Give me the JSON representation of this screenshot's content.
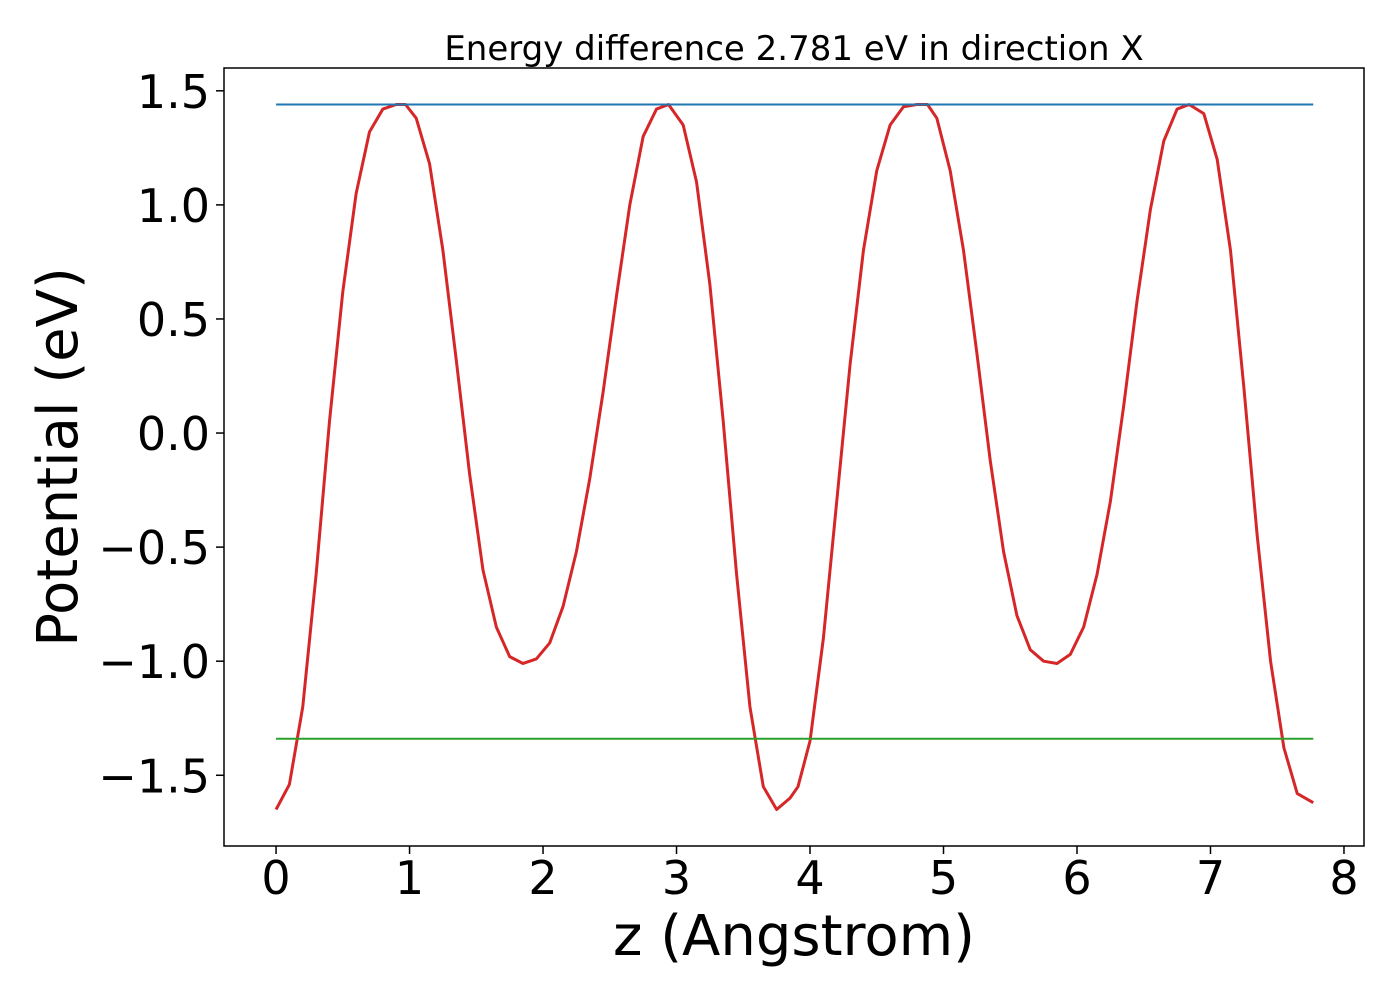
{
  "chart_data": {
    "type": "line",
    "title": "Energy difference 2.781 eV in direction X",
    "xlabel": "z (Angstrom)",
    "ylabel": "Potential (eV)",
    "xlim": [
      -0.39,
      8.15
    ],
    "ylim": [
      -1.81,
      1.6
    ],
    "xticks": [
      0,
      1,
      2,
      3,
      4,
      5,
      6,
      7,
      8
    ],
    "xtick_labels": [
      "0",
      "1",
      "2",
      "3",
      "4",
      "5",
      "6",
      "7",
      "8"
    ],
    "yticks": [
      -1.5,
      -1.0,
      -0.5,
      0.0,
      0.5,
      1.0,
      1.5
    ],
    "ytick_labels": [
      "−1.5",
      "−1.0",
      "−0.5",
      "0.0",
      "0.5",
      "1.0",
      "1.5"
    ],
    "grid": false,
    "series": [
      {
        "color": "#d62728",
        "x": [
          0.0,
          0.1,
          0.2,
          0.3,
          0.4,
          0.5,
          0.6,
          0.7,
          0.8,
          0.9,
          0.97,
          1.05,
          1.15,
          1.25,
          1.35,
          1.45,
          1.55,
          1.65,
          1.75,
          1.85,
          1.95,
          2.05,
          2.15,
          2.25,
          2.35,
          2.45,
          2.55,
          2.65,
          2.75,
          2.85,
          2.94,
          3.05,
          3.15,
          3.25,
          3.35,
          3.45,
          3.55,
          3.65,
          3.75,
          3.85,
          3.91,
          4.0,
          4.1,
          4.2,
          4.3,
          4.4,
          4.5,
          4.6,
          4.7,
          4.8,
          4.88,
          4.95,
          5.05,
          5.15,
          5.25,
          5.35,
          5.45,
          5.55,
          5.65,
          5.75,
          5.85,
          5.95,
          6.05,
          6.15,
          6.25,
          6.35,
          6.45,
          6.55,
          6.65,
          6.75,
          6.84,
          6.95,
          7.05,
          7.15,
          7.25,
          7.35,
          7.45,
          7.55,
          7.65,
          7.77
        ],
        "y": [
          -1.65,
          -1.54,
          -1.2,
          -0.62,
          0.05,
          0.62,
          1.05,
          1.32,
          1.42,
          1.44,
          1.44,
          1.38,
          1.18,
          0.8,
          0.32,
          -0.18,
          -0.6,
          -0.85,
          -0.98,
          -1.01,
          -0.99,
          -0.92,
          -0.76,
          -0.52,
          -0.2,
          0.18,
          0.6,
          1.0,
          1.3,
          1.42,
          1.44,
          1.35,
          1.1,
          0.65,
          0.05,
          -0.62,
          -1.2,
          -1.55,
          -1.65,
          -1.6,
          -1.55,
          -1.35,
          -0.9,
          -0.3,
          0.3,
          0.8,
          1.15,
          1.35,
          1.43,
          1.44,
          1.44,
          1.38,
          1.15,
          0.8,
          0.35,
          -0.12,
          -0.52,
          -0.8,
          -0.95,
          -1.0,
          -1.01,
          -0.97,
          -0.85,
          -0.62,
          -0.3,
          0.12,
          0.58,
          0.98,
          1.28,
          1.42,
          1.44,
          1.4,
          1.2,
          0.8,
          0.2,
          -0.45,
          -1.0,
          -1.38,
          -1.58,
          -1.62
        ]
      },
      {
        "color": "#1f77b4",
        "x": [
          0.0,
          7.77
        ],
        "y": [
          1.44,
          1.44
        ]
      },
      {
        "color": "#2ca02c",
        "x": [
          0.0,
          7.77
        ],
        "y": [
          -1.34,
          -1.34
        ]
      }
    ]
  }
}
